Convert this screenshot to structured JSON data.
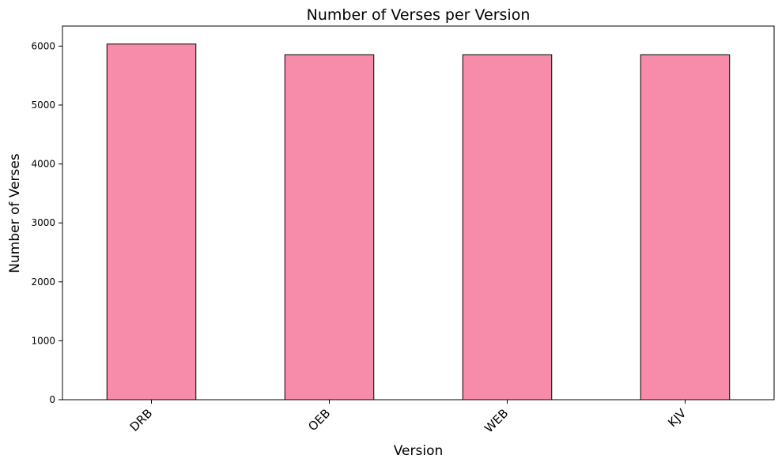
{
  "chart_data": {
    "type": "bar",
    "title": "Number of Verses per Version",
    "xlabel": "Version",
    "ylabel": "Number of Verses",
    "categories": [
      "DRB",
      "OEB",
      "WEB",
      "KJV"
    ],
    "values": [
      6035,
      5853,
      5853,
      5853
    ],
    "ylim": [
      0,
      6340
    ],
    "yticks": [
      "0",
      "1000",
      "2000",
      "3000",
      "4000",
      "5000",
      "6000"
    ],
    "grid": false,
    "bar_color": "#f68ca9",
    "edge_color": "#000000",
    "xtick_rotation": -45
  }
}
